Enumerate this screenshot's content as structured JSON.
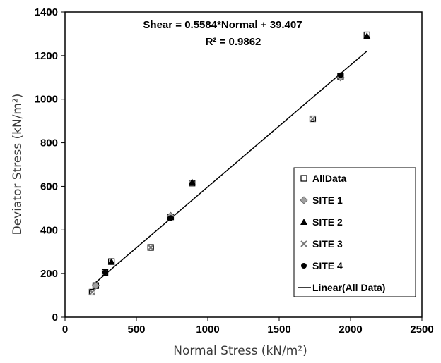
{
  "chart_data": {
    "type": "scatter",
    "xlabel": "Normal Stress (kN/m²)",
    "ylabel": "Deviator Stress (kN/m²)",
    "xlim": [
      0,
      2500
    ],
    "ylim": [
      0,
      1400
    ],
    "xticks": [
      0,
      500,
      1000,
      1500,
      2000,
      2500
    ],
    "yticks": [
      0,
      200,
      400,
      600,
      800,
      1000,
      1200,
      1400
    ],
    "grid": false,
    "legend_position": "bottom-right",
    "annotation": {
      "equation": "Shear = 0.5584*Normal + 39.407",
      "r2": "R² = 0.9862"
    },
    "trendline": {
      "name": "Linear(All Data)",
      "slope": 0.5584,
      "intercept": 39.407,
      "x_range": [
        190,
        2115
      ]
    },
    "series": [
      {
        "name": "All Data",
        "marker": "square-open",
        "color": "#000000",
        "points": [
          [
            190,
            115
          ],
          [
            215,
            145
          ],
          [
            280,
            205
          ],
          [
            325,
            255
          ],
          [
            600,
            320
          ],
          [
            740,
            460
          ],
          [
            890,
            615
          ],
          [
            1735,
            910
          ],
          [
            1930,
            1105
          ],
          [
            2115,
            1295
          ]
        ]
      },
      {
        "name": "SITE 1",
        "marker": "diamond",
        "color": "#a0a0a0",
        "points": [
          [
            215,
            145
          ],
          [
            740,
            465
          ],
          [
            1930,
            1100
          ]
        ]
      },
      {
        "name": "SITE 2",
        "marker": "triangle",
        "color": "#000000",
        "points": [
          [
            325,
            255
          ],
          [
            890,
            620
          ],
          [
            2115,
            1290
          ]
        ]
      },
      {
        "name": "SITE 3",
        "marker": "x",
        "color": "#777777",
        "points": [
          [
            190,
            115
          ],
          [
            600,
            320
          ],
          [
            1735,
            910
          ]
        ]
      },
      {
        "name": "SITE 4",
        "marker": "circle",
        "color": "#000000",
        "points": [
          [
            280,
            205
          ],
          [
            740,
            455
          ],
          [
            1930,
            1110
          ]
        ]
      }
    ]
  }
}
